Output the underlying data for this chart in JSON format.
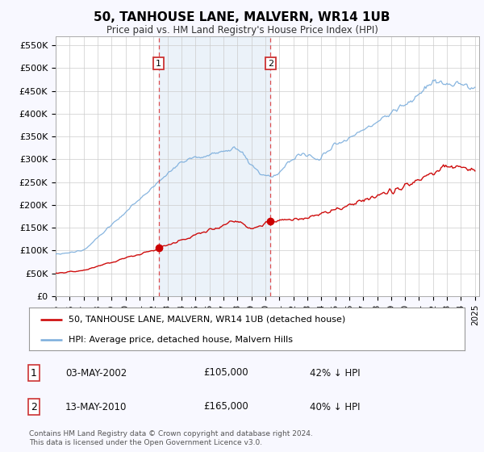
{
  "title": "50, TANHOUSE LANE, MALVERN, WR14 1UB",
  "subtitle": "Price paid vs. HM Land Registry's House Price Index (HPI)",
  "ylabel_ticks": [
    "£0",
    "£50K",
    "£100K",
    "£150K",
    "£200K",
    "£250K",
    "£300K",
    "£350K",
    "£400K",
    "£450K",
    "£500K",
    "£550K"
  ],
  "ytick_values": [
    0,
    50000,
    100000,
    150000,
    200000,
    250000,
    300000,
    350000,
    400000,
    450000,
    500000,
    550000
  ],
  "year_start": 1995,
  "year_end": 2025,
  "transaction1_date": 2002.37,
  "transaction1_value": 105000,
  "transaction2_date": 2010.37,
  "transaction2_value": 165000,
  "legend_line1": "50, TANHOUSE LANE, MALVERN, WR14 1UB (detached house)",
  "legend_line2": "HPI: Average price, detached house, Malvern Hills",
  "table_row1_num": "1",
  "table_row1_date": "03-MAY-2002",
  "table_row1_price": "£105,000",
  "table_row1_hpi": "42% ↓ HPI",
  "table_row2_num": "2",
  "table_row2_date": "13-MAY-2010",
  "table_row2_price": "£165,000",
  "table_row2_hpi": "40% ↓ HPI",
  "footnote": "Contains HM Land Registry data © Crown copyright and database right 2024.\nThis data is licensed under the Open Government Licence v3.0.",
  "bg_color": "#f8f8ff",
  "plot_bg_color": "#ffffff",
  "red_color": "#cc0000",
  "blue_color": "#7aaddc",
  "shade_color": "#ddeeff"
}
